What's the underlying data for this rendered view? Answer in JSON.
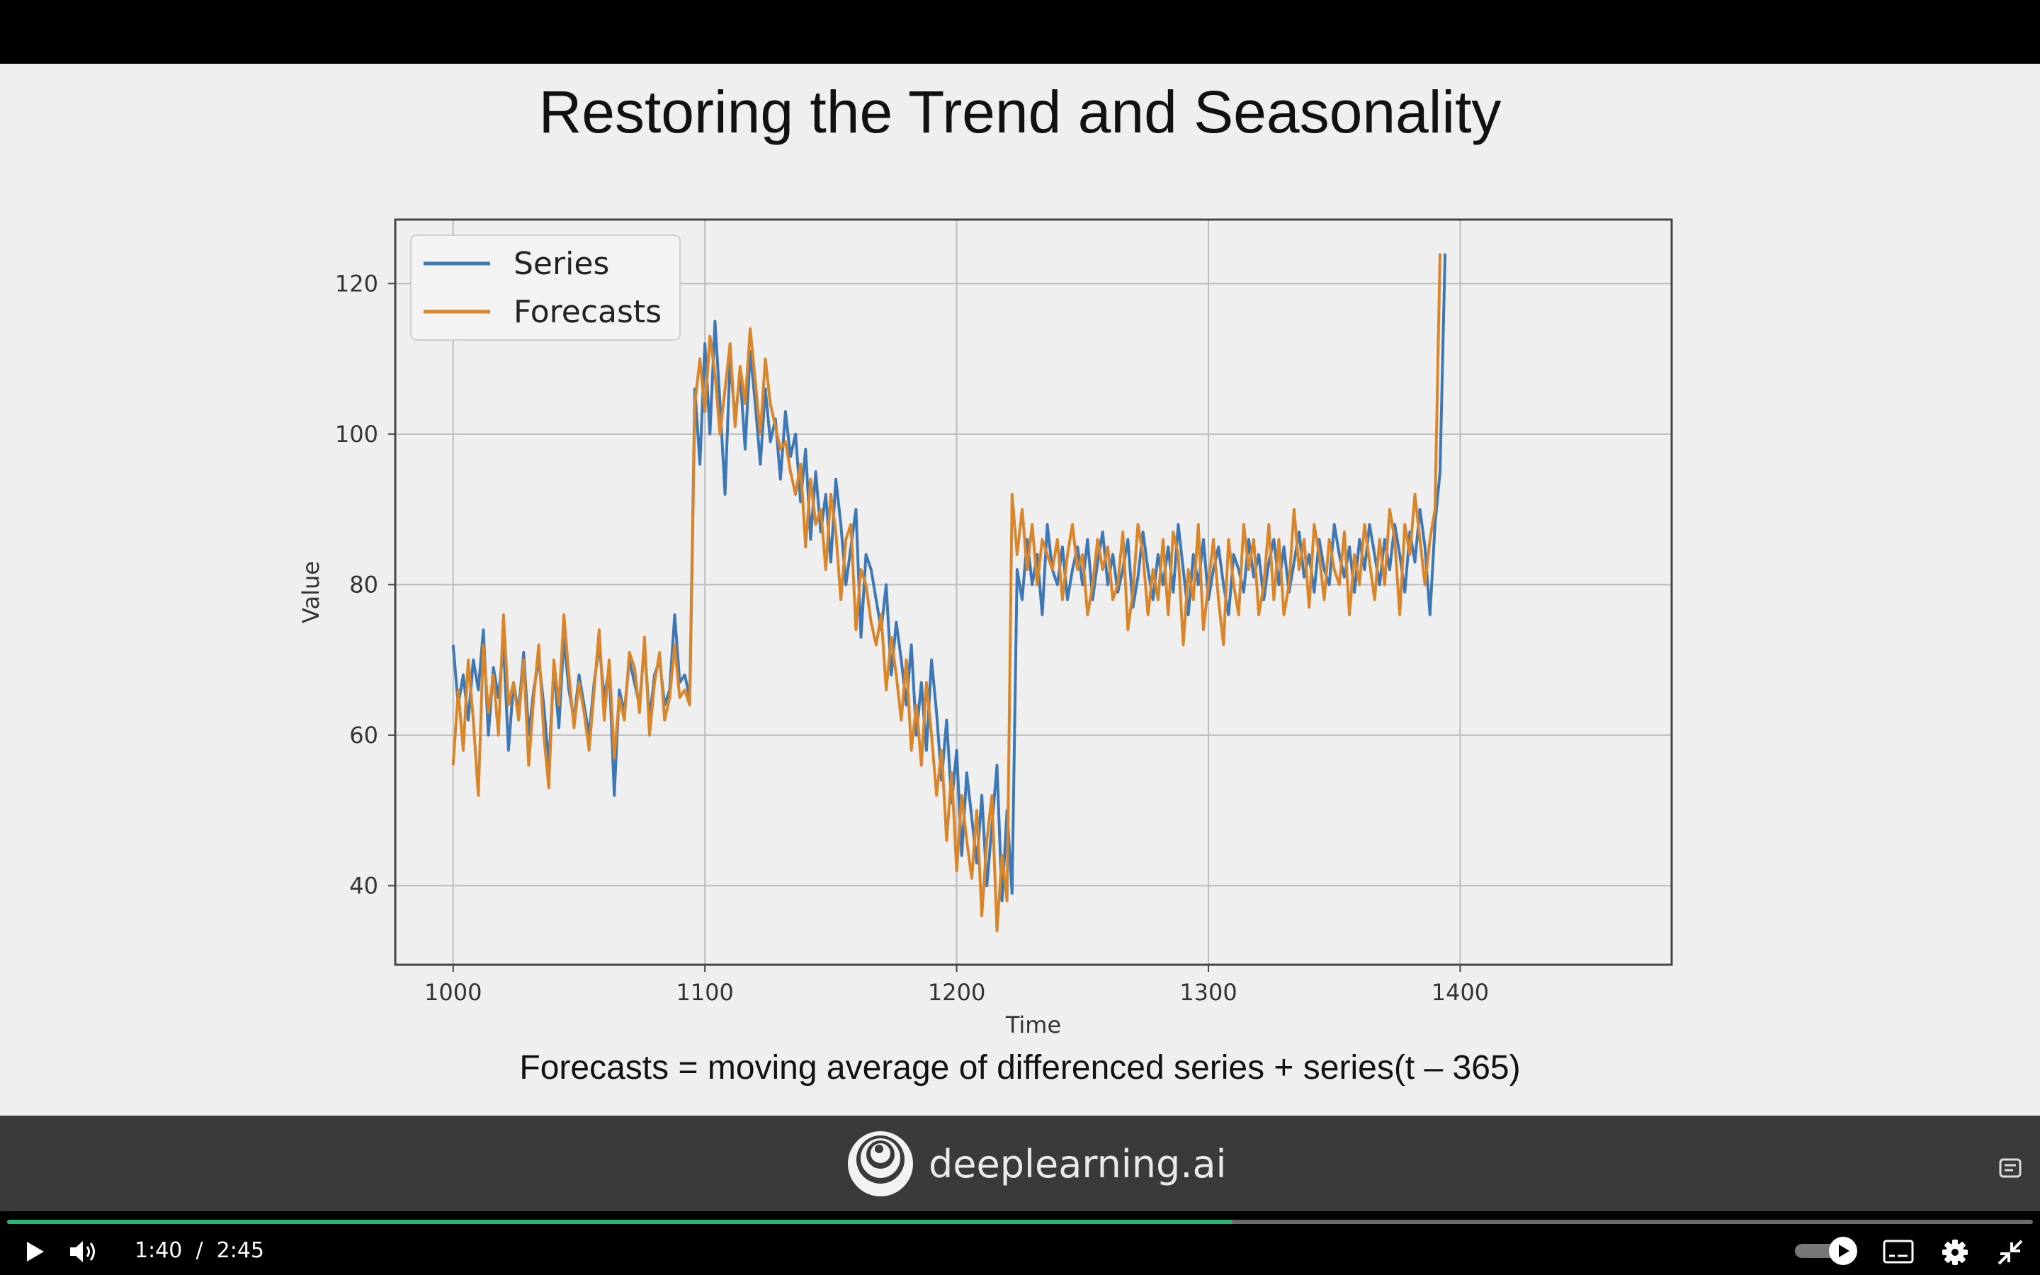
{
  "slide": {
    "title": "Restoring the Trend and Seasonality",
    "caption": "Forecasts = moving average of differenced series + series(t – 365)"
  },
  "brand": {
    "name": "deeplearning.ai"
  },
  "player": {
    "current_time": "1:40",
    "separator": "/",
    "duration": "2:45",
    "progress": 0.605,
    "accent_color": "#2bb673",
    "icons": [
      "play-icon",
      "volume-icon",
      "autoplay-toggle-icon",
      "captions-icon",
      "settings-icon",
      "exit-fullscreen-icon",
      "transcript-icon"
    ]
  },
  "chart_data": {
    "type": "line",
    "title": "",
    "xlabel": "Time",
    "ylabel": "Value",
    "xlim": [
      977,
      1484
    ],
    "ylim": [
      29.5,
      128.5
    ],
    "xticks": [
      1000,
      1100,
      1200,
      1300,
      1400
    ],
    "yticks": [
      40,
      60,
      80,
      100,
      120
    ],
    "grid": true,
    "legend": "top-left",
    "series": [
      {
        "name": "Series",
        "color": "#3d78b5",
        "x_start": 1000,
        "x_step": 2,
        "values": [
          72,
          64,
          68,
          62,
          70,
          66,
          74,
          60,
          69,
          65,
          72,
          58,
          67,
          63,
          71,
          60,
          66,
          70,
          64,
          56,
          69,
          61,
          73,
          66,
          62,
          68,
          64,
          60,
          67,
          72,
          65,
          69,
          52,
          66,
          63,
          70,
          67,
          64,
          72,
          62,
          68,
          70,
          64,
          66,
          76,
          67,
          68,
          65,
          106,
          96,
          112,
          100,
          115,
          104,
          92,
          110,
          102,
          108,
          98,
          111,
          104,
          96,
          106,
          99,
          102,
          94,
          103,
          97,
          100,
          91,
          98,
          86,
          95,
          87,
          92,
          83,
          94,
          88,
          80,
          85,
          90,
          73,
          84,
          82,
          78,
          74,
          80,
          68,
          75,
          70,
          64,
          72,
          60,
          67,
          58,
          70,
          63,
          54,
          62,
          51,
          58,
          44,
          55,
          49,
          43,
          52,
          40,
          48,
          56,
          38,
          50,
          39,
          82,
          78,
          86,
          80,
          84,
          76,
          88,
          82,
          80,
          85,
          78,
          82,
          85,
          80,
          86,
          78,
          83,
          87,
          80,
          84,
          79,
          82,
          86,
          77,
          81,
          87,
          82,
          78,
          84,
          80,
          85,
          79,
          88,
          82,
          76,
          84,
          80,
          86,
          78,
          82,
          85,
          80,
          76,
          84,
          82,
          79,
          86,
          81,
          84,
          78,
          83,
          86,
          80,
          85,
          79,
          83,
          87,
          81,
          84,
          79,
          86,
          82,
          80,
          88,
          84,
          81,
          85,
          79,
          86,
          82,
          88,
          84,
          80,
          86,
          82,
          88,
          84,
          79,
          87,
          83,
          90,
          85,
          76,
          88,
          95,
          124
        ]
      },
      {
        "name": "Forecasts",
        "color": "#d9852a",
        "x_start": 1000,
        "x_step": 2,
        "values": [
          56,
          66,
          58,
          70,
          62,
          52,
          72,
          63,
          68,
          60,
          76,
          64,
          67,
          62,
          70,
          56,
          65,
          72,
          60,
          53,
          70,
          64,
          76,
          68,
          61,
          67,
          63,
          58,
          66,
          74,
          62,
          70,
          57,
          65,
          62,
          71,
          69,
          63,
          73,
          60,
          67,
          71,
          62,
          65,
          72,
          65,
          66,
          64,
          104,
          110,
          103,
          113,
          108,
          100,
          106,
          112,
          101,
          109,
          104,
          114,
          107,
          100,
          110,
          104,
          101,
          98,
          99,
          95,
          92,
          96,
          85,
          94,
          88,
          90,
          82,
          92,
          87,
          78,
          86,
          88,
          74,
          82,
          80,
          75,
          72,
          76,
          66,
          73,
          68,
          62,
          70,
          58,
          64,
          56,
          67,
          60,
          52,
          58,
          46,
          55,
          42,
          52,
          46,
          41,
          50,
          36,
          46,
          52,
          34,
          44,
          38,
          92,
          84,
          90,
          82,
          88,
          80,
          86,
          84,
          82,
          86,
          78,
          84,
          88,
          82,
          84,
          76,
          80,
          86,
          82,
          85,
          78,
          80,
          87,
          74,
          79,
          88,
          84,
          76,
          82,
          78,
          86,
          76,
          87,
          84,
          72,
          82,
          78,
          88,
          74,
          80,
          86,
          78,
          72,
          86,
          80,
          76,
          88,
          82,
          86,
          76,
          80,
          88,
          78,
          86,
          76,
          80,
          90,
          82,
          86,
          77,
          88,
          84,
          78,
          86,
          82,
          80,
          87,
          76,
          84,
          80,
          88,
          83,
          78,
          86,
          80,
          90,
          86,
          76,
          88,
          84,
          92,
          86,
          80,
          86,
          90,
          124
        ]
      }
    ]
  }
}
